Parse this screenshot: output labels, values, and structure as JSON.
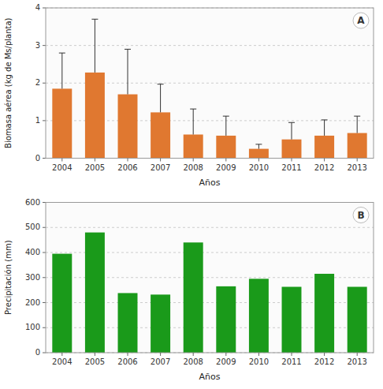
{
  "chart_data": [
    {
      "type": "bar",
      "categories": [
        "2004",
        "2005",
        "2006",
        "2007",
        "2008",
        "2009",
        "2010",
        "2011",
        "2012",
        "2013"
      ],
      "values": [
        1.85,
        2.28,
        1.7,
        1.22,
        0.63,
        0.6,
        0.25,
        0.5,
        0.6,
        0.67
      ],
      "errors": [
        0.95,
        1.42,
        1.2,
        0.75,
        0.68,
        0.52,
        0.12,
        0.45,
        0.42,
        0.45
      ],
      "color": "#E07830",
      "ylabel": "Biomasa aérea (kg de Ms/planta)",
      "xlabel": "Años",
      "ylim": [
        0,
        4
      ],
      "yticks": [
        0,
        1,
        2,
        3,
        4
      ],
      "grid": true,
      "annotation": "A"
    },
    {
      "type": "bar",
      "categories": [
        "2004",
        "2005",
        "2006",
        "2007",
        "2008",
        "2009",
        "2010",
        "2011",
        "2012",
        "2013"
      ],
      "values": [
        395,
        480,
        238,
        232,
        440,
        265,
        295,
        263,
        315,
        263
      ],
      "color": "#1A9A1A",
      "ylabel": "Precipitación (mm)",
      "xlabel": "Años",
      "ylim": [
        0,
        600
      ],
      "yticks": [
        0,
        100,
        200,
        300,
        400,
        500,
        600
      ],
      "grid": true,
      "annotation": "B"
    }
  ]
}
